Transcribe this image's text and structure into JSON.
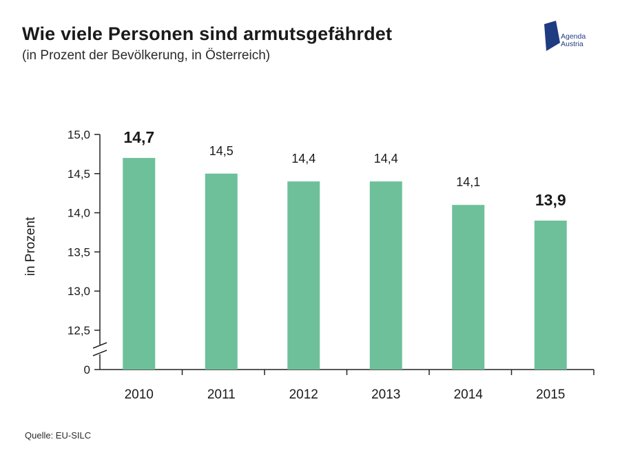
{
  "header": {
    "title": "Wie viele Personen sind armutsgefährdet",
    "subtitle": "(in Prozent der Bevölkerung, in Österreich)"
  },
  "logo": {
    "line1": "Agenda",
    "line2": "Austria"
  },
  "source": "Quelle: EU-SILC",
  "colors": {
    "bar": "#6dc09a",
    "axis": "#222222",
    "logo": "#1f3b82"
  },
  "chart_data": {
    "type": "bar",
    "categories": [
      "2010",
      "2011",
      "2012",
      "2013",
      "2014",
      "2015"
    ],
    "values": [
      14.7,
      14.5,
      14.4,
      14.4,
      14.1,
      13.9
    ],
    "value_labels": [
      "14,7",
      "14,5",
      "14,4",
      "14,4",
      "14,1",
      "13,9"
    ],
    "highlighted": [
      true,
      false,
      false,
      false,
      false,
      true
    ],
    "ylabel": "in Prozent",
    "ylim": [
      12.0,
      15.0
    ],
    "axis_break": true,
    "yticks": [
      {
        "value": 15.0,
        "label": "15,0"
      },
      {
        "value": 14.5,
        "label": "14,5"
      },
      {
        "value": 14.0,
        "label": "14,0"
      },
      {
        "value": 13.5,
        "label": "13,5"
      },
      {
        "value": 13.0,
        "label": "13,0"
      },
      {
        "value": 12.5,
        "label": "12,5"
      },
      {
        "value": 0,
        "label": "0"
      }
    ],
    "grid": false,
    "legend": "none"
  }
}
